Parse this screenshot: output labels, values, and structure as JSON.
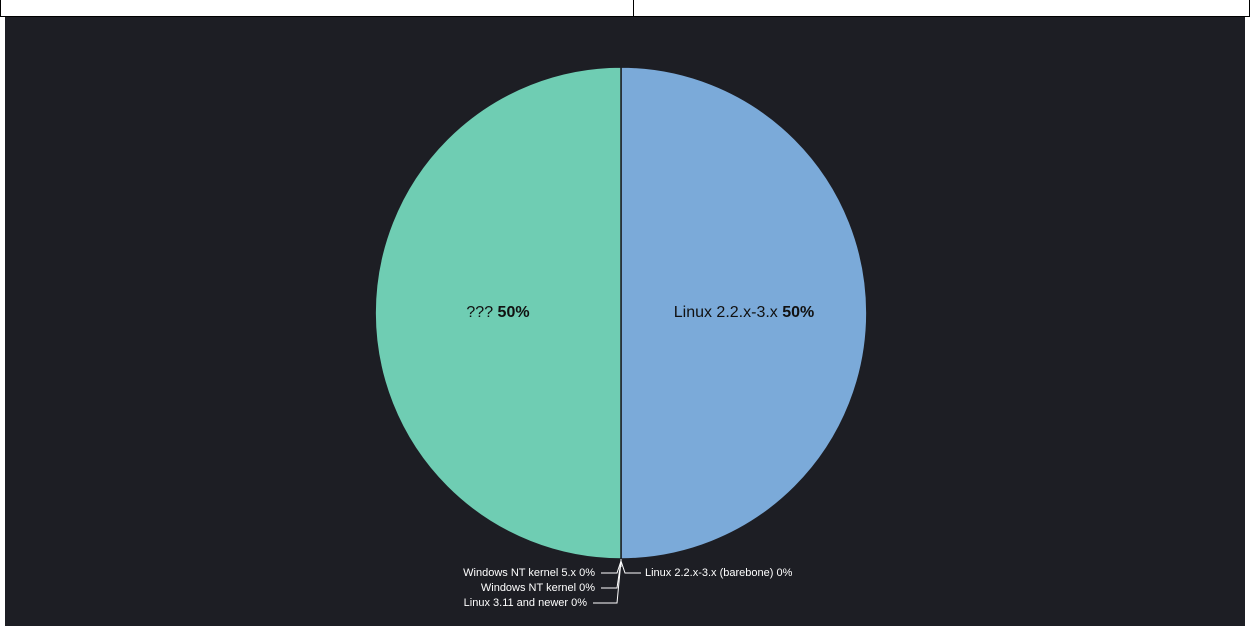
{
  "chart_data": {
    "type": "pie",
    "title": "",
    "slices": [
      {
        "label": "Linux 2.2.x-3.x",
        "value": 50,
        "display": "50%",
        "color": "#7baad9"
      },
      {
        "label": "Linux 2.2.x-3.x (barebone)",
        "value": 0,
        "display": "0%",
        "color": "#e0c060"
      },
      {
        "label": "Linux 3.11 and newer",
        "value": 0,
        "display": "0%",
        "color": "#d97b7b"
      },
      {
        "label": "Windows NT kernel",
        "value": 0,
        "display": "0%",
        "color": "#b07bd9"
      },
      {
        "label": "Windows NT kernel 5.x",
        "value": 0,
        "display": "0%",
        "color": "#9ed97b"
      },
      {
        "label": "???",
        "value": 50,
        "display": "50%",
        "color": "#6fcdb3"
      }
    ],
    "legend": "none",
    "colors": {
      "background": "#1d1e24",
      "outline": "#1d1e24",
      "inner_label": "#111111",
      "outer_label": "#ffffff"
    }
  }
}
